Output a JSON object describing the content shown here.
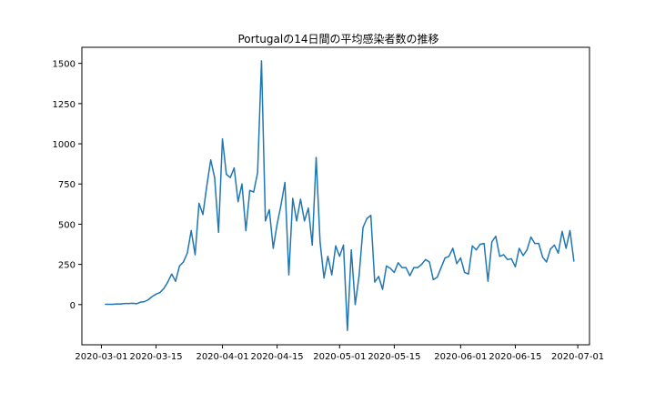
{
  "chart_data": {
    "type": "line",
    "title": "Portugalの14日間の平均感染者数の推移",
    "xlabel": "",
    "ylabel": "",
    "x_start": "2020-03-02",
    "x_tick_dates": [
      "2020-03-01",
      "2020-03-15",
      "2020-04-01",
      "2020-04-15",
      "2020-05-01",
      "2020-05-15",
      "2020-06-01",
      "2020-06-15",
      "2020-07-01"
    ],
    "x_tick_labels": [
      "2020-03-01",
      "2020-03-15",
      "2020-04-01",
      "2020-04-15",
      "2020-05-01",
      "2020-05-15",
      "2020-06-01",
      "2020-06-15",
      "2020-07-01"
    ],
    "y_ticks": [
      0,
      250,
      500,
      750,
      1000,
      1250,
      1500
    ],
    "y_tick_labels": [
      "0",
      "250",
      "500",
      "750",
      "1000",
      "1250",
      "1500"
    ],
    "xlim": [
      "2020-02-25",
      "2020-07-04"
    ],
    "ylim": [
      -250,
      1600
    ],
    "grid": false,
    "series": [
      {
        "name": "",
        "color": "#1f77b4",
        "values": [
          2,
          2,
          2,
          4,
          4,
          7,
          7,
          8,
          5,
          15,
          18,
          30,
          50,
          65,
          75,
          100,
          140,
          190,
          145,
          240,
          265,
          320,
          460,
          310,
          630,
          560,
          740,
          900,
          790,
          450,
          1030,
          810,
          790,
          850,
          640,
          750,
          460,
          710,
          700,
          820,
          1515,
          520,
          590,
          350,
          500,
          620,
          760,
          185,
          660,
          520,
          655,
          520,
          600,
          370,
          915,
          390,
          165,
          300,
          185,
          365,
          300,
          370,
          -160,
          340,
          0,
          180,
          480,
          535,
          555,
          140,
          175,
          95,
          240,
          225,
          200,
          260,
          230,
          230,
          180,
          230,
          230,
          250,
          280,
          265,
          155,
          170,
          230,
          290,
          300,
          350,
          255,
          290,
          200,
          190,
          365,
          340,
          375,
          380,
          145,
          390,
          425,
          300,
          310,
          280,
          285,
          235,
          350,
          305,
          340,
          420,
          380,
          380,
          295,
          265,
          345,
          370,
          320,
          455,
          350,
          460,
          270
        ]
      }
    ]
  }
}
